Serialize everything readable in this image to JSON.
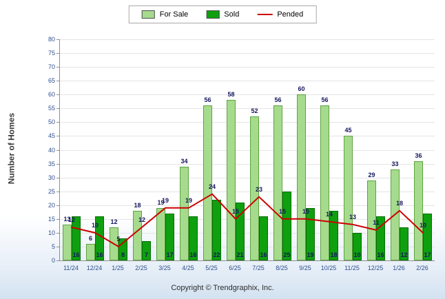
{
  "footer": "Copyright © Trendgraphix, Inc.",
  "chart_data": {
    "type": "bar",
    "title": "",
    "ylabel": "Number of Homes",
    "xlabel": "",
    "ylim": [
      0,
      80
    ],
    "ytick_step": 5,
    "grid": true,
    "legend_position": "top",
    "categories": [
      "11/24",
      "12/24",
      "1/25",
      "2/25",
      "3/25",
      "4/25",
      "5/25",
      "6/25",
      "7/25",
      "8/25",
      "9/25",
      "10/25",
      "11/25",
      "12/25",
      "1/26",
      "2/26"
    ],
    "series": [
      {
        "name": "For Sale",
        "type": "bar",
        "color": "#A6DB8D",
        "border_color": "#5da23f",
        "values": [
          13,
          6,
          12,
          18,
          19,
          34,
          56,
          58,
          52,
          56,
          60,
          56,
          45,
          29,
          33,
          36
        ]
      },
      {
        "name": "Sold",
        "type": "bar",
        "color": "#0FA00F",
        "border_color": "#056d05",
        "values": [
          16,
          16,
          8,
          7,
          17,
          16,
          22,
          21,
          16,
          25,
          19,
          18,
          10,
          16,
          12,
          17
        ]
      },
      {
        "name": "Pended",
        "type": "line",
        "color": "#CC0000",
        "values": [
          12,
          10,
          5,
          12,
          19,
          19,
          24,
          15,
          23,
          15,
          15,
          14,
          13,
          11,
          18,
          10
        ]
      }
    ]
  }
}
